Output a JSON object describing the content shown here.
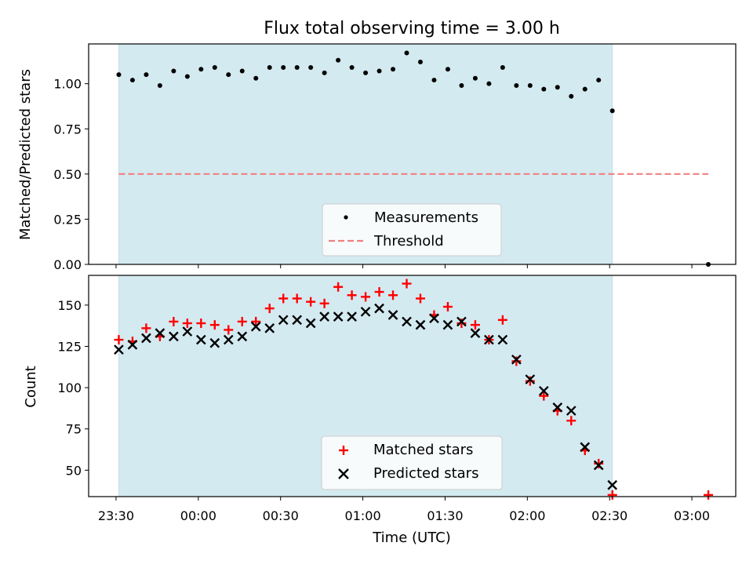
{
  "figure": {
    "title": "Flux total observing time = 3.00 h",
    "xlabel": "Time (UTC)",
    "x_tick_labels": [
      "23:30",
      "00:00",
      "00:30",
      "01:00",
      "01:30",
      "02:00",
      "02:30",
      "03:00"
    ],
    "x_tick_values_min": [
      0,
      30,
      60,
      90,
      120,
      150,
      180,
      210
    ],
    "xlim_min": [
      -10,
      226
    ],
    "observing_window_min": [
      1,
      181
    ],
    "colors": {
      "window": "#d4eaf1",
      "window_edge": "#bfdfe8",
      "measurement": "#000000",
      "threshold": "#f08080",
      "matched": "#ff0000",
      "predicted": "#000000"
    }
  },
  "chart_data": [
    {
      "type": "scatter",
      "ylabel": "Matched/Predicted stars",
      "ylim": [
        0,
        1.22
      ],
      "y_tick_labels": [
        "0.00",
        "0.25",
        "0.50",
        "0.75",
        "1.00"
      ],
      "y_tick_values": [
        0,
        0.25,
        0.5,
        0.75,
        1.0
      ],
      "grid": false,
      "legend_position": "lower center",
      "legend": [
        {
          "name": "Measurements",
          "marker": "dot"
        },
        {
          "name": "Threshold",
          "marker": "dashed-line"
        }
      ],
      "series": [
        {
          "name": "Measurements",
          "x_min": [
            1,
            6,
            11,
            16,
            21,
            26,
            31,
            36,
            41,
            46,
            51,
            56,
            61,
            66,
            71,
            76,
            81,
            86,
            91,
            96,
            101,
            106,
            111,
            116,
            121,
            126,
            131,
            136,
            141,
            146,
            151,
            156,
            161,
            166,
            171,
            176,
            181,
            216
          ],
          "y": [
            1.05,
            1.02,
            1.05,
            0.99,
            1.07,
            1.04,
            1.08,
            1.09,
            1.05,
            1.07,
            1.03,
            1.09,
            1.09,
            1.09,
            1.09,
            1.06,
            1.13,
            1.09,
            1.06,
            1.07,
            1.08,
            1.17,
            1.12,
            1.02,
            1.08,
            0.99,
            1.03,
            1.0,
            1.09,
            0.99,
            0.99,
            0.97,
            0.98,
            0.93,
            0.97,
            1.02,
            0.85,
            0.0
          ]
        },
        {
          "name": "Threshold",
          "x_min": [
            1,
            216
          ],
          "y": [
            0.5,
            0.5
          ]
        }
      ]
    },
    {
      "type": "scatter",
      "ylabel": "Count",
      "ylim": [
        34,
        168
      ],
      "y_tick_labels": [
        "50",
        "75",
        "100",
        "125",
        "150"
      ],
      "y_tick_values": [
        50,
        75,
        100,
        125,
        150
      ],
      "grid": false,
      "legend_position": "lower center",
      "legend": [
        {
          "name": "Matched stars",
          "marker": "plus"
        },
        {
          "name": "Predicted stars",
          "marker": "x"
        }
      ],
      "series": [
        {
          "name": "Matched stars",
          "x_min": [
            1,
            6,
            11,
            16,
            21,
            26,
            31,
            36,
            41,
            46,
            51,
            56,
            61,
            66,
            71,
            76,
            81,
            86,
            91,
            96,
            101,
            106,
            111,
            116,
            121,
            126,
            131,
            136,
            141,
            146,
            151,
            156,
            161,
            166,
            171,
            176,
            181,
            216
          ],
          "y": [
            129,
            128,
            136,
            131,
            140,
            139,
            139,
            138,
            135,
            140,
            140,
            148,
            154,
            154,
            152,
            151,
            161,
            156,
            155,
            158,
            156,
            163,
            154,
            144,
            149,
            139,
            138,
            129,
            141,
            116,
            104,
            95,
            86,
            80,
            62,
            54,
            35,
            35
          ]
        },
        {
          "name": "Predicted stars",
          "x_min": [
            1,
            6,
            11,
            16,
            21,
            26,
            31,
            36,
            41,
            46,
            51,
            56,
            61,
            66,
            71,
            76,
            81,
            86,
            91,
            96,
            101,
            106,
            111,
            116,
            121,
            126,
            131,
            136,
            141,
            146,
            151,
            156,
            161,
            166,
            171,
            176,
            181
          ],
          "y": [
            123,
            126,
            130,
            133,
            131,
            134,
            129,
            127,
            129,
            131,
            137,
            136,
            141,
            141,
            139,
            143,
            143,
            143,
            146,
            148,
            144,
            140,
            138,
            142,
            138,
            140,
            133,
            129,
            129,
            117,
            105,
            98,
            88,
            86,
            64,
            53,
            41
          ]
        }
      ]
    }
  ]
}
